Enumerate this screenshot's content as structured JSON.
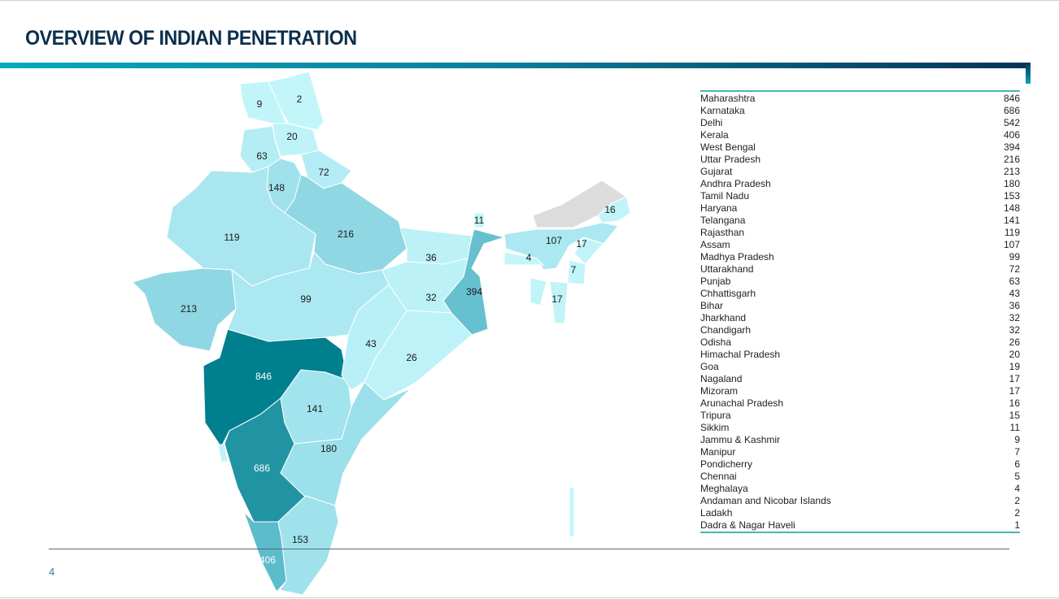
{
  "header": {
    "title": "OVERVIEW OF INDIAN PENETRATION"
  },
  "footer": {
    "page_number": "4"
  },
  "colors": {
    "accent_start": "#03a9bd",
    "accent_end": "#033357",
    "table_rule": "#49b5b2",
    "no_data": "#dcdcdc"
  },
  "table": {
    "rows": [
      {
        "state": "Maharashtra",
        "value": "846"
      },
      {
        "state": "Karnataka",
        "value": "686"
      },
      {
        "state": "Delhi",
        "value": "542"
      },
      {
        "state": "Kerala",
        "value": "406"
      },
      {
        "state": "West Bengal",
        "value": "394"
      },
      {
        "state": "Uttar Pradesh",
        "value": "216"
      },
      {
        "state": "Gujarat",
        "value": "213"
      },
      {
        "state": "Andhra Pradesh",
        "value": "180"
      },
      {
        "state": "Tamil Nadu",
        "value": "153"
      },
      {
        "state": "Haryana",
        "value": "148"
      },
      {
        "state": "Telangana",
        "value": "141"
      },
      {
        "state": "Rajasthan",
        "value": "119"
      },
      {
        "state": "Assam",
        "value": "107"
      },
      {
        "state": "Madhya Pradesh",
        "value": "99"
      },
      {
        "state": "Uttarakhand",
        "value": "72"
      },
      {
        "state": "Punjab",
        "value": "63"
      },
      {
        "state": "Chhattisgarh",
        "value": "43"
      },
      {
        "state": "Bihar",
        "value": "36"
      },
      {
        "state": "Jharkhand",
        "value": "32"
      },
      {
        "state": "Chandigarh",
        "value": "32"
      },
      {
        "state": "Odisha",
        "value": "26"
      },
      {
        "state": "Himachal Pradesh",
        "value": "20"
      },
      {
        "state": "Goa",
        "value": "19"
      },
      {
        "state": "Nagaland",
        "value": "17"
      },
      {
        "state": "Mizoram",
        "value": "17"
      },
      {
        "state": "Arunachal Pradesh",
        "value": "16"
      },
      {
        "state": "Tripura",
        "value": "15"
      },
      {
        "state": "Sikkim",
        "value": "11"
      },
      {
        "state": "Jammu & Kashmir",
        "value": "9"
      },
      {
        "state": "Manipur",
        "value": "7"
      },
      {
        "state": "Pondicherry",
        "value": "6"
      },
      {
        "state": "Chennai",
        "value": "5"
      },
      {
        "state": "Meghalaya",
        "value": "4"
      },
      {
        "state": "Andaman and Nicobar Islands",
        "value": "2"
      },
      {
        "state": "Ladakh",
        "value": "2"
      },
      {
        "state": "Dadra & Nagar Haveli",
        "value": "1"
      }
    ]
  },
  "map": {
    "type": "choropleth",
    "regions": [
      {
        "state": "Maharashtra",
        "value": 846,
        "label": "846",
        "color": "#007f8f"
      },
      {
        "state": "Karnataka",
        "value": 686,
        "label": "686",
        "color": "#2194a4"
      },
      {
        "state": "Delhi",
        "value": 542,
        "color": "#3aa9b9"
      },
      {
        "state": "Kerala",
        "value": 406,
        "label": "406",
        "color": "#5cbccb"
      },
      {
        "state": "West Bengal",
        "value": 394,
        "label": "394",
        "color": "#66c0cf"
      },
      {
        "state": "Uttar Pradesh",
        "value": 216,
        "label": "216",
        "color": "#8fd7e3"
      },
      {
        "state": "Gujarat",
        "value": 213,
        "label": "213",
        "color": "#8fd7e3"
      },
      {
        "state": "Andhra Pradesh",
        "value": 180,
        "label": "180",
        "color": "#9be0ea"
      },
      {
        "state": "Tamil Nadu",
        "value": 153,
        "label": "153",
        "color": "#9fe2ec"
      },
      {
        "state": "Haryana",
        "value": 148,
        "label": "148",
        "color": "#9fe2ec"
      },
      {
        "state": "Telangana",
        "value": 141,
        "label": "141",
        "color": "#a2e4ee"
      },
      {
        "state": "Rajasthan",
        "value": 119,
        "label": "119",
        "color": "#a9e6f0"
      },
      {
        "state": "Assam",
        "value": 107,
        "label": "107",
        "color": "#abe8f1"
      },
      {
        "state": "Madhya Pradesh",
        "value": 99,
        "label": "99",
        "color": "#ace8f1"
      },
      {
        "state": "Uttarakhand",
        "value": 72,
        "label": "72",
        "color": "#b3ecf4"
      },
      {
        "state": "Punjab",
        "value": 63,
        "label": "63",
        "color": "#b5edf5"
      },
      {
        "state": "Chhattisgarh",
        "value": 43,
        "label": "43",
        "color": "#b9f0f7"
      },
      {
        "state": "Bihar",
        "value": 36,
        "label": "36",
        "color": "#bbf1f7"
      },
      {
        "state": "Jharkhand",
        "value": 32,
        "label": "32",
        "color": "#bbf1f7"
      },
      {
        "state": "Odisha",
        "value": 26,
        "label": "26",
        "color": "#bdf2f8"
      },
      {
        "state": "Himachal Pradesh",
        "value": 20,
        "label": "20",
        "color": "#bff3f9"
      },
      {
        "state": "Goa",
        "value": 19,
        "color": "#bff3f9"
      },
      {
        "state": "Nagaland",
        "value": 17,
        "label": "17",
        "color": "#c0f4f9"
      },
      {
        "state": "Mizoram",
        "value": 17,
        "label": "17",
        "color": "#c0f4f9"
      },
      {
        "state": "Arunachal Pradesh",
        "value": 16,
        "label": "16",
        "color": "#c0f4f9"
      },
      {
        "state": "Tripura",
        "value": 15,
        "color": "#c0f4f9"
      },
      {
        "state": "Sikkim",
        "value": 11,
        "label": "11",
        "color": "#c1f5fa"
      },
      {
        "state": "Jammu & Kashmir",
        "value": 9,
        "label": "9",
        "color": "#c2f5fa"
      },
      {
        "state": "Manipur",
        "value": 7,
        "label": "7",
        "color": "#c2f5fa"
      },
      {
        "state": "Meghalaya",
        "value": 4,
        "label": "4",
        "color": "#c3f6fb"
      },
      {
        "state": "Andaman and Nicobar Islands",
        "value": 2,
        "color": "#c3f6fb"
      },
      {
        "state": "Ladakh",
        "value": 2,
        "label": "2",
        "color": "#c3f6fb"
      },
      {
        "state": "Arunachal Pradesh (no data)",
        "color": "#dcdcdc"
      }
    ]
  }
}
